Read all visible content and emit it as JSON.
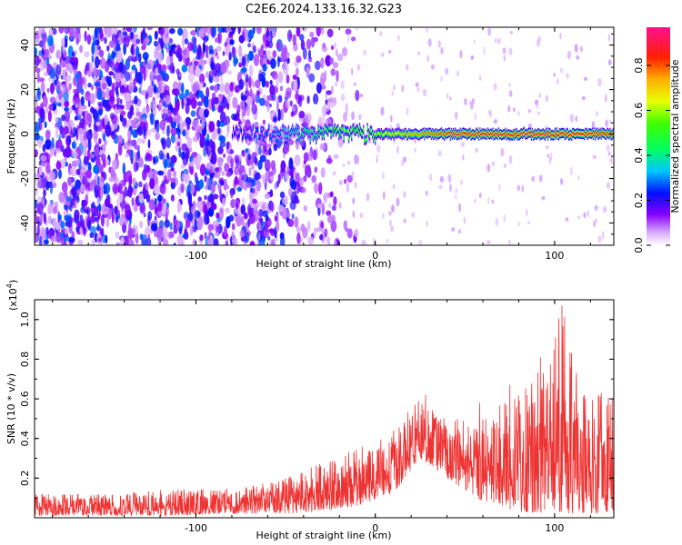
{
  "title": "C2E6.2024.133.16.32.G23",
  "colors": {
    "signal": "#ee3333",
    "frame": "#000000",
    "background": "#ffffff"
  },
  "chart_data": [
    {
      "type": "heatmap",
      "title": "C2E6.2024.133.16.32.G23",
      "xlabel": "Height of straight line (km)",
      "ylabel": "Frequency (Hz)",
      "xlim": [
        -190,
        133
      ],
      "ylim": [
        -50,
        48
      ],
      "xticks": [
        -100,
        0,
        100
      ],
      "xtick_labels": [
        "-100",
        "0",
        "100"
      ],
      "yticks": [
        -40,
        -20,
        0,
        20,
        40
      ],
      "ytick_labels": [
        "-40",
        "-20",
        "0",
        "20",
        "40"
      ],
      "colorbar": {
        "label": "Normalized spectral amplitude",
        "range": [
          0,
          0.97
        ],
        "ticks": [
          0,
          0.2,
          0.4,
          0.6,
          0.8
        ],
        "tick_labels": [
          "0.0",
          "0.2",
          "0.4",
          "0.6",
          "0.8"
        ],
        "colormap": "rainbow (white-violet-blue-cyan-green-yellow-red-magenta)"
      },
      "features": {
        "noise_region_km": [
          -190,
          -30
        ],
        "noise_amplitude_range": [
          0.05,
          0.3
        ],
        "signal_line_center_hz": 0,
        "signal_line_onset_km": -80,
        "signal_strength_by_height": [
          {
            "x": -90,
            "amp": 0.2
          },
          {
            "x": -60,
            "amp": 0.3
          },
          {
            "x": -40,
            "amp": 0.45
          },
          {
            "x": -20,
            "amp": 0.55
          },
          {
            "x": 0,
            "amp": 0.6
          },
          {
            "x": 20,
            "amp": 0.75
          },
          {
            "x": 50,
            "amp": 0.9
          },
          {
            "x": 80,
            "amp": 0.92
          },
          {
            "x": 110,
            "amp": 0.9
          },
          {
            "x": 130,
            "amp": 0.85
          }
        ]
      }
    },
    {
      "type": "line",
      "xlabel": "Height of straight line (km)",
      "ylabel": "SNR (10 * v/v)",
      "y_multiplier": "(x10^4)",
      "xlim": [
        -190,
        133
      ],
      "ylim": [
        0,
        1.1
      ],
      "xticks": [
        -100,
        0,
        100
      ],
      "xtick_labels": [
        "-100",
        "0",
        "100"
      ],
      "yticks": [
        0.2,
        0.4,
        0.6,
        0.8,
        1.0
      ],
      "ytick_labels": [
        "0.2",
        "0.4",
        "0.6",
        "0.8",
        "1.0"
      ],
      "series": [
        {
          "color": "#ee3333",
          "envelope": [
            {
              "x": -190,
              "low": 0.01,
              "high": 0.12
            },
            {
              "x": -150,
              "low": 0.01,
              "high": 0.12
            },
            {
              "x": -120,
              "low": 0.01,
              "high": 0.14
            },
            {
              "x": -80,
              "low": 0.02,
              "high": 0.15
            },
            {
              "x": -50,
              "low": 0.02,
              "high": 0.2
            },
            {
              "x": -30,
              "low": 0.03,
              "high": 0.28
            },
            {
              "x": -10,
              "low": 0.06,
              "high": 0.36
            },
            {
              "x": 10,
              "low": 0.12,
              "high": 0.45
            },
            {
              "x": 25,
              "low": 0.3,
              "high": 0.6
            },
            {
              "x": 40,
              "low": 0.2,
              "high": 0.5
            },
            {
              "x": 60,
              "low": 0.08,
              "high": 0.52
            },
            {
              "x": 80,
              "low": 0.03,
              "high": 0.62
            },
            {
              "x": 95,
              "low": 0.02,
              "high": 0.78
            },
            {
              "x": 104,
              "low": 0.02,
              "high": 1.07
            },
            {
              "x": 115,
              "low": 0.02,
              "high": 0.68
            },
            {
              "x": 133,
              "low": 0.03,
              "high": 0.6
            }
          ],
          "peaks": [
            {
              "x": 28,
              "y": 0.62
            },
            {
              "x": 58,
              "y": 0.58
            },
            {
              "x": 75,
              "y": 0.67
            },
            {
              "x": 92,
              "y": 0.81
            },
            {
              "x": 104,
              "y": 1.07
            },
            {
              "x": 126,
              "y": 0.63
            },
            {
              "x": 132,
              "y": 0.6
            }
          ]
        }
      ]
    }
  ]
}
